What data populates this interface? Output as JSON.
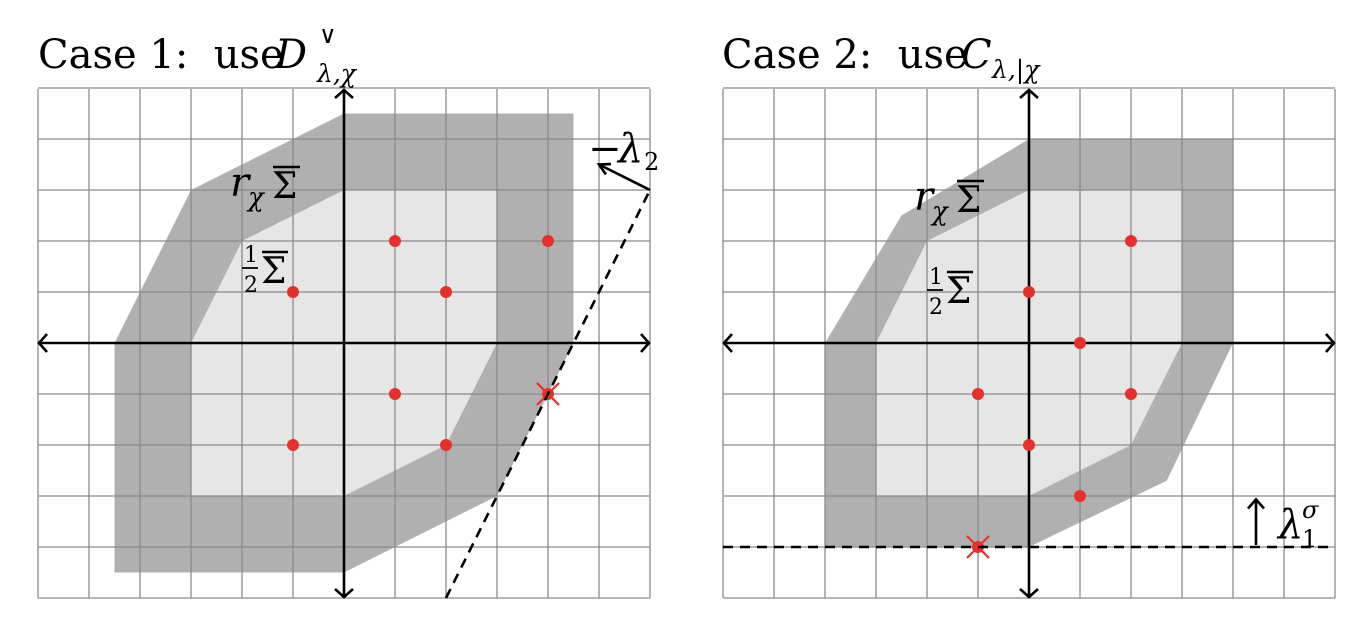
{
  "panels": [
    {
      "title_prefix": "Case 1:  use ",
      "title_symbol": "D",
      "title_superscript": "∨",
      "title_subscript": "λ,χ",
      "outer_label": {
        "r": "r",
        "chi": "χ",
        "sigma": "Σ"
      },
      "inner_label": {
        "num": "1",
        "den": "2",
        "sigma": "Σ"
      },
      "line_label": {
        "minus": "−",
        "lambda": "λ",
        "sub": "2"
      },
      "outer_region": [
        [
          -4.5,
          -4.5
        ],
        [
          -4.5,
          0
        ],
        [
          -3,
          3
        ],
        [
          0,
          4.5
        ],
        [
          4.5,
          4.5
        ],
        [
          4.5,
          0
        ],
        [
          3,
          -3
        ],
        [
          0,
          -4.5
        ]
      ],
      "inner_region": [
        [
          -3,
          -3
        ],
        [
          -3,
          0
        ],
        [
          -2,
          2
        ],
        [
          0,
          3
        ],
        [
          3,
          3
        ],
        [
          3,
          0
        ],
        [
          2,
          -2
        ],
        [
          0,
          -3
        ]
      ],
      "points": [
        [
          1,
          2
        ],
        [
          4,
          2
        ],
        [
          -1,
          1
        ],
        [
          2,
          1
        ],
        [
          1,
          -1
        ],
        [
          -1,
          -2
        ],
        [
          2,
          -2
        ],
        [
          4,
          -1
        ]
      ],
      "special_point": [
        4,
        -1
      ],
      "line": {
        "type": "slanted",
        "slope": 2,
        "through": [
          4,
          -1
        ],
        "y_range": [
          -5,
          3
        ]
      },
      "arrow_vector": [
        -1,
        0.5
      ]
    },
    {
      "title_prefix": "Case 2:  use ",
      "title_symbol": "C",
      "title_superscript": "",
      "title_subscript": "λ,|χ",
      "outer_label": {
        "r": "r",
        "chi": "χ",
        "sigma": "Σ"
      },
      "inner_label": {
        "num": "1",
        "den": "2",
        "sigma": "Σ"
      },
      "line_label": {
        "lambda": "λ",
        "sup": "σ",
        "sub": "1"
      },
      "outer_region": [
        [
          -4,
          -4
        ],
        [
          -4,
          0
        ],
        [
          -2.5,
          2.5
        ],
        [
          0,
          4
        ],
        [
          4,
          4
        ],
        [
          4,
          0
        ],
        [
          2.7,
          -2.7
        ],
        [
          0,
          -4
        ]
      ],
      "inner_region": [
        [
          -3,
          -3
        ],
        [
          -3,
          0
        ],
        [
          -2,
          2
        ],
        [
          0,
          3
        ],
        [
          3,
          3
        ],
        [
          3,
          0
        ],
        [
          2,
          -2
        ],
        [
          0,
          -3
        ]
      ],
      "points": [
        [
          2,
          2
        ],
        [
          0,
          1
        ],
        [
          1,
          0
        ],
        [
          -1,
          -1
        ],
        [
          2,
          -1
        ],
        [
          0,
          -2
        ],
        [
          1,
          -3
        ],
        [
          -1,
          -4
        ]
      ],
      "special_point": [
        -1,
        -4
      ],
      "line": {
        "type": "horizontal",
        "y": -4
      },
      "arrow_vector": [
        0,
        0.5
      ]
    }
  ],
  "colors": {
    "outer": "#b0b0b0",
    "inner": "#e6e6e6",
    "grid": "#8a8a8a",
    "point": "#e8302a",
    "axis": "#000000"
  }
}
